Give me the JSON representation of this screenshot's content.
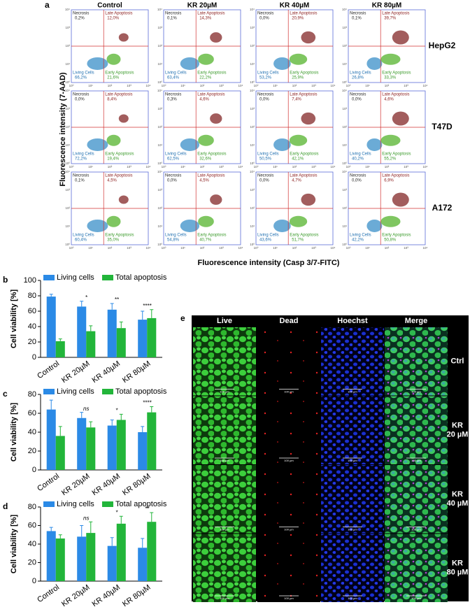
{
  "panel_a": {
    "letter": "a",
    "columns": [
      "Control",
      "KR 20µM",
      "KR 40µM",
      "KR 80µM"
    ],
    "rows": [
      "HepG2",
      "T47D",
      "A172"
    ],
    "quadrants": [
      "Necrosis",
      "Late Apoptosis",
      "Living Cells",
      "Early Apoptosis"
    ],
    "axis_ticks": [
      "10⁰",
      "10¹",
      "10²",
      "10³",
      "10⁴"
    ],
    "y_label": "Fluorescence intensity (7-AAD)",
    "x_label": "Fluorescence intensity (Casp 3/7-FITC)",
    "percentages": [
      [
        [
          "0,2%",
          "12,0%",
          "66,2%",
          "21,6%"
        ],
        [
          "0,1%",
          "14,3%",
          "63,4%",
          "22,2%"
        ],
        [
          "0,0%",
          "20,9%",
          "53,2%",
          "25,9%"
        ],
        [
          "0,1%",
          "39,7%",
          "26,8%",
          "33,3%"
        ]
      ],
      [
        [
          "0,0%",
          "8,4%",
          "72,2%",
          "19,4%"
        ],
        [
          "0,3%",
          "4,6%",
          "62,5%",
          "32,6%"
        ],
        [
          "0,0%",
          "7,4%",
          "50,5%",
          "42,1%"
        ],
        [
          "0,0%",
          "4,6%",
          "40,2%",
          "55,2%"
        ]
      ],
      [
        [
          "0,1%",
          "4,5%",
          "60,4%",
          "35,0%"
        ],
        [
          "0,0%",
          "4,5%",
          "54,8%",
          "40,7%"
        ],
        [
          "0,0%",
          "4,7%",
          "43,6%",
          "51,7%"
        ],
        [
          "0,0%",
          "6,9%",
          "42,2%",
          "50,8%"
        ]
      ]
    ]
  },
  "chart_data": [
    {
      "type": "bar",
      "panel_label": "b",
      "y_label": "Cell viability [%]",
      "categories": [
        "Control",
        "KR 20µM",
        "KR 40µM",
        "KR 80µM"
      ],
      "series": [
        {
          "name": "Living cells",
          "color": "#2b8ae6",
          "values": [
            79,
            66,
            62,
            49
          ],
          "errors": [
            3,
            7,
            8,
            11
          ]
        },
        {
          "name": "Total apoptosis",
          "color": "#22b53a",
          "values": [
            21,
            34,
            38,
            51
          ],
          "errors": [
            3,
            7,
            8,
            11
          ]
        }
      ],
      "significance": [
        null,
        "*",
        "**",
        "****"
      ],
      "ylim": [
        0,
        100
      ],
      "yticks": [
        0,
        20,
        40,
        60,
        80,
        100
      ]
    },
    {
      "type": "bar",
      "panel_label": "c",
      "y_label": "Cell viability [%]",
      "categories": [
        "Control",
        "KR 20µM",
        "KR 40µM",
        "KR 80µM"
      ],
      "series": [
        {
          "name": "Living cells",
          "color": "#2b8ae6",
          "values": [
            64,
            55,
            47,
            40
          ],
          "errors": [
            10,
            6,
            6,
            6
          ]
        },
        {
          "name": "Total apoptosis",
          "color": "#22b53a",
          "values": [
            36,
            45,
            53,
            61
          ],
          "errors": [
            10,
            6,
            6,
            6
          ]
        }
      ],
      "significance": [
        null,
        "ns",
        "*",
        "****"
      ],
      "ylim": [
        0,
        80
      ],
      "yticks": [
        0,
        20,
        40,
        60,
        80
      ]
    },
    {
      "type": "bar",
      "panel_label": "d",
      "y_label": "Cell viability [%]",
      "categories": [
        "Control",
        "KR 20µM",
        "KR 40µM",
        "KR 80µM"
      ],
      "series": [
        {
          "name": "Living cells",
          "color": "#2b8ae6",
          "values": [
            54,
            48,
            38,
            36
          ],
          "errors": [
            4,
            12,
            9,
            10
          ]
        },
        {
          "name": "Total apoptosis",
          "color": "#22b53a",
          "values": [
            46,
            52,
            62,
            64
          ],
          "errors": [
            4,
            12,
            8,
            10
          ]
        }
      ],
      "significance": [
        null,
        "ns",
        "*",
        "**"
      ],
      "ylim": [
        0,
        80
      ],
      "yticks": [
        0,
        20,
        40,
        60,
        80
      ]
    }
  ],
  "panel_e": {
    "letter": "e",
    "columns": [
      "Live",
      "Dead",
      "Hoechst",
      "Merge"
    ],
    "rows": [
      [
        "Ctrl"
      ],
      [
        "KR",
        "20 µM"
      ],
      [
        "KR",
        "40 µM"
      ],
      [
        "KR",
        "80 µM"
      ]
    ],
    "scale_bar": "100 µm"
  }
}
